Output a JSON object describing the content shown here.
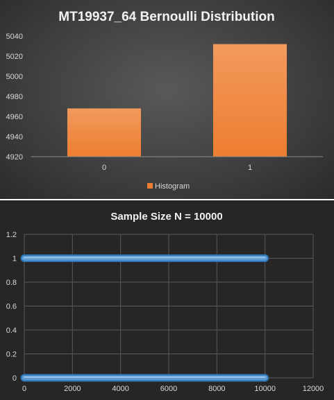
{
  "chart_data": [
    {
      "type": "bar",
      "title": "MT19937_64 Bernoulli Distribution",
      "categories": [
        "0",
        "1"
      ],
      "series": [
        {
          "name": "Histogram",
          "values": [
            4968,
            5032
          ]
        }
      ],
      "ylim": [
        4920,
        5040
      ],
      "yticks": [
        "4920",
        "4940",
        "4960",
        "4980",
        "5000",
        "5020",
        "5040"
      ],
      "grid": false,
      "legend": "bottom",
      "colors": {
        "bar": "#ed7d31",
        "bar_light": "#f29a5c",
        "background": "#404040"
      }
    },
    {
      "type": "scatter",
      "title": "Sample Size N = 10000",
      "series": [
        {
          "x": [
            0,
            10000
          ],
          "y": [
            1,
            1
          ]
        },
        {
          "x": [
            0,
            10000
          ],
          "y": [
            0,
            0
          ]
        }
      ],
      "xlim": [
        0,
        12000
      ],
      "ylim": [
        0,
        1.2
      ],
      "xticks": [
        "0",
        "2000",
        "4000",
        "6000",
        "8000",
        "10000",
        "12000"
      ],
      "yticks": [
        "0",
        "0.2",
        "0.4",
        "0.6",
        "0.8",
        "1",
        "1.2"
      ],
      "grid": true,
      "legend": "none",
      "colors": {
        "marker": "#5b9bd5",
        "marker_edge": "#2e75b6",
        "grid": "#595959",
        "background": "#262626"
      }
    }
  ]
}
